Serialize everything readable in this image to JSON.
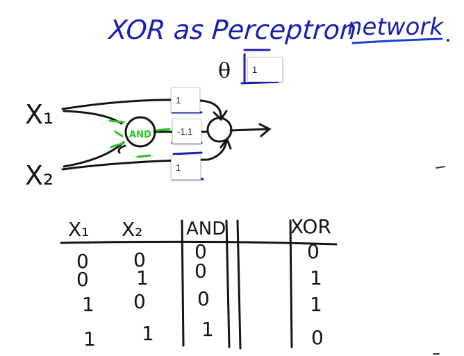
{
  "title": {
    "part1": "XOR as Perceptron",
    "part2": "network"
  },
  "theta_symbol": "θ",
  "inputs": {
    "x1": "X₁",
    "x2": "X₂"
  },
  "and_node_label": "AND",
  "weights": {
    "theta": "1",
    "w_x1": "1",
    "w_and": "-1.1",
    "w_x2": "1"
  },
  "table": {
    "headers": [
      "X₁",
      "X₂",
      "AND",
      "XOR"
    ],
    "rows": [
      [
        "0",
        "0",
        "0",
        "0"
      ],
      [
        "0",
        "1",
        "0",
        "1"
      ],
      [
        "1",
        "0",
        "0",
        "1"
      ],
      [
        "1",
        "1",
        "1",
        "0"
      ]
    ]
  },
  "colors": {
    "ink_blue": "#1a1fb0",
    "ink_black": "#151515",
    "ink_green": "#27c41f",
    "underline_blue": "#1a3fd0"
  }
}
